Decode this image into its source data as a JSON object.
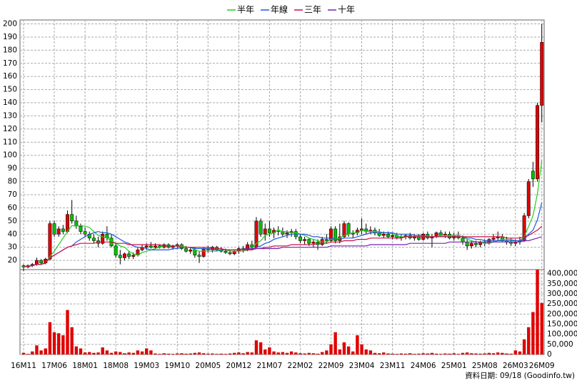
{
  "chart_data": {
    "type": "candlestick",
    "legend": "top",
    "grid": true,
    "up_color": "#e00000",
    "down_color": "#00c000",
    "volume_color": "#e00000",
    "note": "資料日期: 09/18 (Goodinfo.tw)",
    "categories": [
      "16M11",
      null,
      null,
      null,
      null,
      null,
      null,
      "17M06",
      null,
      null,
      null,
      null,
      null,
      null,
      "18M01",
      null,
      null,
      null,
      null,
      null,
      null,
      "18M08",
      null,
      null,
      null,
      null,
      null,
      null,
      "19M03",
      null,
      null,
      null,
      null,
      null,
      null,
      "19M10",
      null,
      null,
      null,
      null,
      null,
      null,
      "20M05",
      null,
      null,
      null,
      null,
      null,
      null,
      "20M12",
      null,
      null,
      null,
      null,
      null,
      null,
      "21M07",
      null,
      null,
      null,
      null,
      null,
      null,
      "22M02",
      null,
      null,
      null,
      null,
      null,
      null,
      "22M09",
      null,
      null,
      null,
      null,
      null,
      null,
      "23M04",
      null,
      null,
      null,
      null,
      null,
      null,
      "23M11",
      null,
      null,
      null,
      null,
      null,
      null,
      "24M06",
      null,
      null,
      null,
      null,
      null,
      null,
      "25M01",
      null,
      null,
      null,
      null,
      null,
      null,
      "25M08",
      null,
      null,
      null,
      null,
      null,
      null,
      "26M03",
      null,
      null,
      null,
      null,
      null,
      "26M09"
    ],
    "open": [
      16,
      15,
      16,
      17,
      20,
      18,
      21,
      48,
      40,
      44,
      42,
      55,
      50,
      46,
      42,
      40,
      37,
      35,
      33,
      40,
      37,
      31,
      24,
      22,
      25,
      23,
      24,
      28,
      30,
      31,
      30,
      31,
      30,
      32,
      30,
      31,
      32,
      29,
      27,
      28,
      24,
      23,
      29,
      28,
      30,
      28,
      27,
      26,
      25,
      27,
      29,
      28,
      32,
      30,
      50,
      40,
      44,
      41,
      43,
      42,
      40,
      41,
      42,
      38,
      35,
      36,
      33,
      34,
      32,
      36,
      35,
      44,
      35,
      38,
      48,
      40,
      41,
      43,
      44,
      42,
      43,
      41,
      39,
      40,
      38,
      39,
      37,
      38,
      39,
      37,
      38,
      36,
      40,
      37,
      38,
      41,
      39,
      40,
      37,
      39,
      37,
      34,
      31,
      33,
      32,
      34,
      33,
      36,
      37,
      38,
      35,
      34,
      33,
      34,
      35,
      54,
      88,
      82,
      138
    ],
    "high": [
      17,
      17,
      18,
      22,
      21,
      22,
      50,
      50,
      46,
      47,
      58,
      66,
      54,
      48,
      45,
      42,
      40,
      38,
      42,
      46,
      40,
      33,
      28,
      26,
      27,
      26,
      30,
      32,
      33,
      34,
      33,
      32,
      33,
      33,
      32,
      33,
      33,
      31,
      30,
      30,
      27,
      30,
      31,
      31,
      31,
      30,
      29,
      28,
      28,
      30,
      31,
      34,
      35,
      53,
      52,
      48,
      50,
      45,
      46,
      45,
      43,
      44,
      44,
      40,
      38,
      37,
      36,
      36,
      38,
      40,
      46,
      46,
      48,
      50,
      49,
      43,
      45,
      52,
      48,
      46,
      45,
      44,
      42,
      42,
      41,
      41,
      40,
      40,
      41,
      40,
      40,
      41,
      42,
      40,
      42,
      43,
      42,
      42,
      41,
      42,
      39,
      36,
      35,
      35,
      35,
      36,
      37,
      40,
      42,
      40,
      38,
      37,
      36,
      38,
      56,
      82,
      95,
      140,
      200
    ],
    "low": [
      12,
      14,
      15,
      16,
      17,
      17,
      20,
      38,
      38,
      40,
      41,
      48,
      44,
      40,
      38,
      35,
      33,
      30,
      32,
      35,
      30,
      22,
      17,
      20,
      21,
      21,
      23,
      27,
      28,
      29,
      29,
      29,
      29,
      29,
      28,
      29,
      28,
      26,
      25,
      22,
      18,
      22,
      26,
      26,
      27,
      26,
      25,
      24,
      24,
      25,
      26,
      27,
      28,
      29,
      38,
      35,
      38,
      37,
      39,
      38,
      37,
      38,
      36,
      33,
      32,
      31,
      30,
      28,
      31,
      33,
      34,
      33,
      33,
      37,
      38,
      37,
      39,
      40,
      40,
      40,
      39,
      38,
      37,
      37,
      36,
      36,
      35,
      36,
      36,
      35,
      35,
      35,
      36,
      30,
      37,
      38,
      37,
      36,
      35,
      36,
      32,
      28,
      29,
      30,
      30,
      31,
      32,
      34,
      35,
      34,
      32,
      31,
      31,
      32,
      34,
      52,
      76,
      80,
      125
    ],
    "close": [
      15,
      16,
      17,
      20,
      18,
      21,
      48,
      40,
      44,
      42,
      55,
      50,
      46,
      42,
      40,
      37,
      35,
      33,
      40,
      37,
      31,
      24,
      22,
      25,
      23,
      24,
      28,
      30,
      31,
      30,
      31,
      30,
      32,
      30,
      31,
      32,
      29,
      27,
      28,
      24,
      23,
      29,
      28,
      30,
      28,
      27,
      26,
      25,
      27,
      29,
      28,
      32,
      30,
      50,
      40,
      44,
      41,
      43,
      42,
      40,
      41,
      42,
      38,
      35,
      36,
      33,
      34,
      32,
      36,
      35,
      44,
      35,
      38,
      48,
      40,
      41,
      43,
      44,
      42,
      43,
      41,
      39,
      40,
      38,
      39,
      37,
      38,
      39,
      37,
      38,
      36,
      40,
      37,
      38,
      41,
      39,
      40,
      37,
      39,
      37,
      34,
      31,
      33,
      32,
      34,
      33,
      36,
      37,
      38,
      35,
      34,
      33,
      34,
      35,
      54,
      80,
      82,
      138,
      186
    ],
    "volume": [
      8000,
      3000,
      15000,
      45000,
      20000,
      30000,
      160000,
      110000,
      105000,
      95000,
      220000,
      135000,
      40000,
      30000,
      10000,
      12000,
      8000,
      10000,
      35000,
      20000,
      8000,
      15000,
      12000,
      6000,
      10000,
      8000,
      20000,
      15000,
      30000,
      20000,
      5000,
      3000,
      6000,
      4000,
      3000,
      5000,
      6000,
      4000,
      5000,
      8000,
      10000,
      6000,
      4000,
      5000,
      3000,
      4000,
      3000,
      5000,
      8000,
      10000,
      6000,
      12000,
      10000,
      70000,
      60000,
      25000,
      35000,
      15000,
      10000,
      12000,
      8000,
      15000,
      10000,
      6000,
      5000,
      8000,
      6000,
      4000,
      12000,
      20000,
      50000,
      110000,
      25000,
      60000,
      40000,
      15000,
      95000,
      50000,
      25000,
      20000,
      8000,
      6000,
      10000,
      5000,
      4000,
      3000,
      5000,
      4000,
      6000,
      3000,
      4000,
      6000,
      5000,
      8000,
      4000,
      3000,
      5000,
      4000,
      6000,
      3000,
      8000,
      10000,
      6000,
      5000,
      4000,
      5000,
      8000,
      6000,
      10000,
      8000,
      5000,
      4000,
      20000,
      15000,
      75000,
      135000,
      210000,
      420000,
      255000
    ],
    "series": [
      {
        "name": "半年",
        "color": "#22cc22",
        "values": [
          15,
          15.5,
          16,
          17,
          17,
          18,
          23,
          27,
          32,
          37,
          42,
          46.5,
          46,
          46.5,
          46,
          45,
          42,
          39,
          38,
          37,
          35,
          33,
          31,
          30,
          27,
          25,
          24,
          26,
          27,
          28,
          29,
          30,
          31,
          31,
          31,
          31,
          31,
          30,
          30,
          28,
          27,
          27,
          27,
          27,
          27,
          28,
          28,
          27,
          27,
          27,
          27,
          28,
          29,
          33,
          35,
          39,
          40,
          41,
          43,
          42,
          42,
          41,
          41,
          40,
          39,
          37,
          36,
          35,
          34,
          34,
          36,
          36,
          37,
          39,
          40,
          41,
          41,
          43,
          42,
          42,
          42,
          42,
          41,
          41,
          40,
          39,
          38,
          38,
          38,
          38,
          38,
          38,
          38,
          38,
          38,
          39,
          39,
          39,
          39,
          39,
          38,
          36,
          35,
          34,
          34,
          33,
          33,
          34,
          35,
          36,
          36,
          36,
          35,
          35,
          38,
          46,
          54,
          71,
          96
        ]
      },
      {
        "name": "年線",
        "color": "#2255dd",
        "values": [
          15,
          15.5,
          16,
          17,
          17,
          18,
          22,
          24,
          26,
          28,
          30,
          31,
          34,
          36,
          38,
          40,
          41,
          42,
          41,
          41,
          40,
          38,
          36,
          34,
          33,
          31,
          30,
          30,
          29,
          28,
          28,
          28,
          28,
          28,
          29,
          29,
          30,
          30,
          30,
          29,
          29,
          29,
          29,
          28,
          28,
          28,
          28,
          28,
          28,
          28,
          28,
          28,
          28,
          30,
          31,
          33,
          34,
          36,
          37,
          38,
          39,
          40,
          40,
          40,
          40,
          39,
          38,
          38,
          37,
          37,
          37,
          36,
          36,
          37,
          37,
          37,
          38,
          39,
          40,
          41,
          41,
          41,
          41,
          41,
          41,
          40,
          40,
          40,
          40,
          39,
          39,
          39,
          38,
          38,
          38,
          38,
          38,
          38,
          38,
          38,
          38,
          37,
          37,
          36,
          36,
          35,
          35,
          35,
          35,
          35,
          35,
          35,
          35,
          35,
          36,
          40,
          43,
          51,
          64
        ]
      },
      {
        "name": "三年",
        "color": "#cc1144",
        "values": [
          15,
          15.5,
          16,
          17,
          17,
          18,
          22,
          24,
          26,
          28,
          30,
          31,
          32,
          33,
          33,
          33,
          33,
          34,
          34,
          34,
          34,
          33,
          33,
          33,
          32,
          32,
          32,
          32,
          32,
          32,
          32,
          32,
          31,
          31,
          31,
          31,
          30,
          30,
          30,
          30,
          30,
          30,
          30,
          29,
          29,
          29,
          28,
          28,
          28,
          28,
          28,
          28,
          28,
          29,
          29,
          30,
          30,
          31,
          31,
          31,
          31,
          32,
          32,
          32,
          32,
          32,
          32,
          33,
          33,
          33,
          34,
          34,
          34,
          35,
          35,
          35,
          36,
          36,
          36,
          37,
          37,
          37,
          37,
          37,
          37,
          37,
          37,
          38,
          38,
          38,
          38,
          38,
          38,
          38,
          38,
          38,
          38,
          38,
          38,
          38,
          38,
          38,
          38,
          38,
          38,
          38,
          38,
          38,
          38,
          38,
          37,
          37,
          37,
          37,
          38,
          39,
          41,
          43,
          46
        ]
      },
      {
        "name": "十年",
        "color": "#7722aa",
        "values": [
          null,
          null,
          null,
          null,
          null,
          null,
          null,
          null,
          null,
          null,
          null,
          null,
          null,
          null,
          null,
          null,
          null,
          null,
          null,
          null,
          null,
          null,
          null,
          null,
          null,
          null,
          null,
          null,
          null,
          null,
          null,
          null,
          null,
          null,
          null,
          null,
          null,
          null,
          null,
          null,
          null,
          null,
          null,
          null,
          null,
          null,
          null,
          null,
          null,
          null,
          29,
          29,
          29,
          29,
          29,
          29,
          29,
          29,
          29,
          30,
          30,
          30,
          30,
          30,
          30,
          30,
          30,
          30,
          30,
          30,
          31,
          31,
          31,
          31,
          31,
          31,
          31,
          31,
          31,
          32,
          32,
          32,
          32,
          32,
          32,
          32,
          32,
          32,
          33,
          33,
          33,
          33,
          33,
          33,
          33,
          33,
          33,
          34,
          34,
          34,
          34,
          34,
          34,
          34,
          34,
          34,
          34,
          34,
          34,
          34,
          34,
          34,
          34,
          34,
          35,
          35,
          36,
          37,
          38
        ]
      }
    ],
    "ylim": [
      13,
      203
    ],
    "yticks": [
      20,
      30,
      40,
      50,
      60,
      70,
      80,
      90,
      100,
      110,
      120,
      130,
      140,
      150,
      160,
      170,
      180,
      190,
      200
    ],
    "volume_ylim": [
      0,
      420000
    ],
    "volume_yticks": [
      0,
      {
        "value": 50000,
        "label": "50,000"
      },
      {
        "value": 100000,
        "label": "100,000"
      },
      {
        "value": 150000,
        "label": "150,000"
      },
      {
        "value": 200000,
        "label": "200,000"
      },
      {
        "value": 250000,
        "label": "250,000"
      },
      {
        "value": 300000,
        "label": "300,000"
      },
      {
        "value": 350000,
        "label": "350,000"
      },
      {
        "value": 400000,
        "label": "400,000"
      }
    ]
  }
}
